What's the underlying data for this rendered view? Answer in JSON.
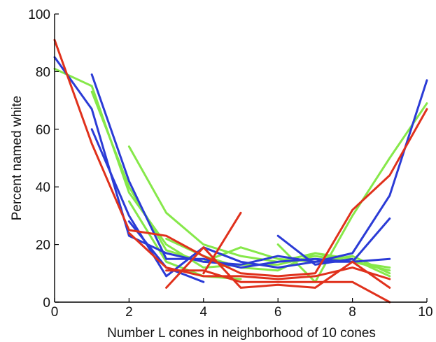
{
  "chart_data": {
    "type": "line",
    "title": "",
    "xlabel": "Number L cones in neighborhood of 10 cones",
    "ylabel": "Percent named white",
    "xlim": [
      0,
      10
    ],
    "ylim": [
      0,
      100
    ],
    "xticks": [
      "0",
      "2",
      "4",
      "6",
      "8",
      "10"
    ],
    "yticks": [
      "0",
      "20",
      "40",
      "60",
      "80",
      "100"
    ],
    "grid": false,
    "legend": "none",
    "colors": {
      "blue": "#2b3bd6",
      "green": "#86e84a",
      "red": "#e0311c"
    },
    "series": [
      {
        "color": "#86e84a",
        "points": [
          [
            0,
            81
          ],
          [
            1,
            75
          ],
          [
            2,
            38
          ],
          [
            3,
            20
          ],
          [
            4,
            12
          ],
          [
            5,
            13
          ],
          [
            6,
            13
          ],
          [
            7,
            16
          ],
          [
            8,
            14
          ],
          [
            9,
            12
          ]
        ]
      },
      {
        "color": "#86e84a",
        "points": [
          [
            1,
            73
          ],
          [
            2,
            40
          ],
          [
            3,
            18
          ],
          [
            4,
            14
          ],
          [
            5,
            19
          ],
          [
            6,
            15
          ],
          [
            7,
            14
          ],
          [
            8,
            16
          ],
          [
            9,
            10
          ]
        ]
      },
      {
        "color": "#86e84a",
        "points": [
          [
            2,
            54
          ],
          [
            3,
            31
          ],
          [
            4,
            20
          ],
          [
            5,
            16
          ],
          [
            6,
            14
          ],
          [
            7,
            17
          ],
          [
            8,
            14
          ],
          [
            9,
            11
          ]
        ]
      },
      {
        "color": "#86e84a",
        "points": [
          [
            2,
            35
          ],
          [
            3,
            14
          ],
          [
            4,
            9
          ],
          [
            5,
            8
          ]
        ]
      },
      {
        "color": "#86e84a",
        "points": [
          [
            6,
            20
          ],
          [
            7,
            7
          ],
          [
            8,
            30
          ],
          [
            9,
            50
          ],
          [
            10,
            69
          ]
        ]
      },
      {
        "color": "#86e84a",
        "points": [
          [
            3,
            22
          ],
          [
            4,
            16
          ],
          [
            5,
            12
          ],
          [
            6,
            11
          ],
          [
            7,
            17
          ],
          [
            8,
            15
          ],
          [
            9,
            9
          ]
        ]
      },
      {
        "color": "#2b3bd6",
        "points": [
          [
            0,
            85
          ],
          [
            1,
            67
          ],
          [
            2,
            23
          ],
          [
            3,
            17
          ],
          [
            4,
            14
          ],
          [
            5,
            13
          ],
          [
            6,
            16
          ],
          [
            7,
            14
          ],
          [
            8,
            17
          ],
          [
            9,
            37
          ],
          [
            10,
            77
          ]
        ]
      },
      {
        "color": "#2b3bd6",
        "points": [
          [
            1,
            79
          ],
          [
            2,
            42
          ],
          [
            3,
            15
          ],
          [
            4,
            15
          ],
          [
            5,
            12
          ],
          [
            6,
            14
          ],
          [
            7,
            15
          ],
          [
            8,
            14
          ],
          [
            9,
            15
          ]
        ]
      },
      {
        "color": "#2b3bd6",
        "points": [
          [
            1,
            60
          ],
          [
            2,
            30
          ],
          [
            3,
            9
          ],
          [
            4,
            19
          ],
          [
            5,
            14
          ],
          [
            6,
            12
          ],
          [
            7,
            14
          ],
          [
            8,
            14
          ],
          [
            9,
            29
          ]
        ]
      },
      {
        "color": "#2b3bd6",
        "points": [
          [
            2,
            28
          ],
          [
            3,
            12
          ],
          [
            4,
            7
          ]
        ]
      },
      {
        "color": "#2b3bd6",
        "points": [
          [
            6,
            23
          ],
          [
            7,
            13
          ],
          [
            8,
            15
          ]
        ]
      },
      {
        "color": "#e0311c",
        "points": [
          [
            0,
            91
          ],
          [
            1,
            55
          ],
          [
            2,
            25
          ],
          [
            3,
            23
          ],
          [
            4,
            16
          ],
          [
            5,
            10
          ],
          [
            6,
            9
          ],
          [
            7,
            10
          ],
          [
            8,
            32
          ],
          [
            9,
            44
          ],
          [
            10,
            67
          ]
        ]
      },
      {
        "color": "#e0311c",
        "points": [
          [
            2,
            24
          ],
          [
            3,
            12
          ],
          [
            4,
            9
          ],
          [
            5,
            9
          ],
          [
            6,
            8
          ],
          [
            7,
            9
          ],
          [
            8,
            12
          ],
          [
            9,
            8
          ]
        ]
      },
      {
        "color": "#e0311c",
        "points": [
          [
            3,
            5
          ],
          [
            4,
            19
          ],
          [
            5,
            5
          ],
          [
            6,
            6
          ],
          [
            7,
            5
          ],
          [
            8,
            14
          ],
          [
            9,
            5
          ]
        ]
      },
      {
        "color": "#e0311c",
        "points": [
          [
            3,
            11
          ],
          [
            4,
            11
          ],
          [
            5,
            7
          ],
          [
            6,
            7
          ],
          [
            7,
            7
          ],
          [
            8,
            7
          ],
          [
            9,
            0
          ]
        ]
      },
      {
        "color": "#e0311c",
        "points": [
          [
            4,
            10
          ],
          [
            5,
            31
          ]
        ]
      }
    ]
  }
}
